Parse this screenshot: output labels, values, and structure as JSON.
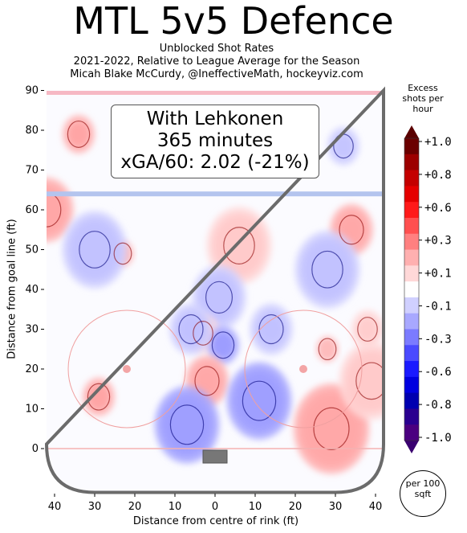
{
  "title": "MTL 5v5 Defence",
  "subtitle_lines": [
    "Unblocked Shot Rates",
    "2021-2022, Relative to League Average for the Season",
    "Micah Blake McCurdy, @IneffectiveMath, hockeyviz.com"
  ],
  "infobox": {
    "line1": "With Lehkonen",
    "line2": "365 minutes",
    "line3": "xGA/60: 2.02 (-21%)"
  },
  "chart_data": {
    "type": "heatmap",
    "title": "MTL 5v5 Defence",
    "xlabel": "Distance from centre of rink (ft)",
    "ylabel": "Distance from goal line (ft)",
    "xlim": [
      -42,
      42
    ],
    "ylim": [
      -11,
      90
    ],
    "x_ticks": [
      -40,
      -30,
      -20,
      -10,
      0,
      10,
      20,
      30,
      40
    ],
    "x_tick_labels": [
      "40",
      "30",
      "20",
      "10",
      "0",
      "10",
      "20",
      "30",
      "40"
    ],
    "y_ticks": [
      0,
      10,
      20,
      30,
      40,
      50,
      60,
      70,
      80,
      90
    ],
    "y_tick_labels": [
      "0",
      "10",
      "20",
      "30",
      "40",
      "50",
      "60",
      "70",
      "80",
      "90"
    ],
    "colorbar": {
      "title": "Excess shots per hour",
      "range": [
        -1.0,
        1.0
      ],
      "tick_labels": [
        "+1.0",
        "+0.8",
        "+0.6",
        "+0.3",
        "+0.1",
        "-0.1",
        "-0.3",
        "-0.6",
        "-0.8",
        "-1.0"
      ],
      "colors": [
        "#6b0000",
        "#9c0000",
        "#c40000",
        "#e50000",
        "#ff1a1a",
        "#ff5050",
        "#ff8080",
        "#ffb0b0",
        "#ffd8d8",
        "#ffffff",
        "#d0d0ff",
        "#a8a8ff",
        "#7b7bff",
        "#4a4aff",
        "#1a1aff",
        "#0000e0",
        "#0000b0",
        "#2a0090",
        "#4b0080"
      ],
      "unit": "per 100 sqft"
    },
    "hotspots": [
      {
        "x": -42,
        "y": 60,
        "value": 0.7
      },
      {
        "x": -23,
        "y": 49,
        "value": 0.2
      },
      {
        "x": 6,
        "y": 51,
        "value": 0.8
      },
      {
        "x": 34,
        "y": 55,
        "value": 0.5
      },
      {
        "x": -30,
        "y": 50,
        "value": -0.8
      },
      {
        "x": 28,
        "y": 45,
        "value": -0.8
      },
      {
        "x": 1,
        "y": 38,
        "value": -0.6
      },
      {
        "x": -3,
        "y": 29,
        "value": 0.3
      },
      {
        "x": 2,
        "y": 26,
        "value": -0.4
      },
      {
        "x": -2,
        "y": 17,
        "value": 0.5
      },
      {
        "x": 11,
        "y": 12,
        "value": -0.9
      },
      {
        "x": -7,
        "y": 6,
        "value": -0.9
      },
      {
        "x": -29,
        "y": 13,
        "value": 0.4
      },
      {
        "x": 29,
        "y": 5,
        "value": 1.0
      },
      {
        "x": 39,
        "y": 17,
        "value": 0.8
      },
      {
        "x": 38,
        "y": 30,
        "value": 0.3
      },
      {
        "x": 28,
        "y": 25,
        "value": 0.2
      },
      {
        "x": -34,
        "y": 79,
        "value": 0.4
      },
      {
        "x": 32,
        "y": 76,
        "value": -0.3
      },
      {
        "x": -6,
        "y": 30,
        "value": -0.5
      },
      {
        "x": 14,
        "y": 30,
        "value": -0.5
      }
    ]
  }
}
